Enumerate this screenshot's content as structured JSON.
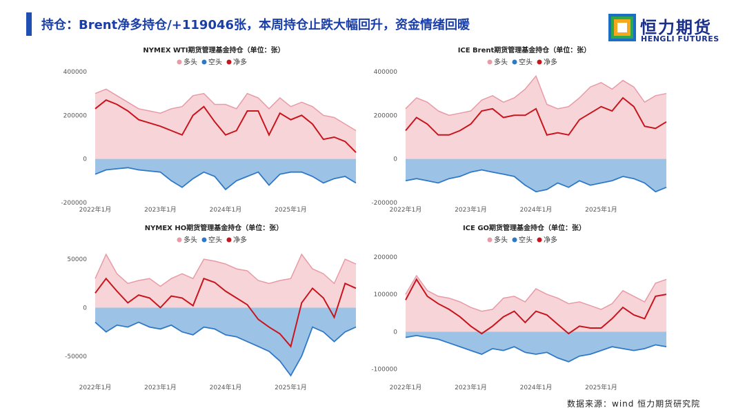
{
  "page": {
    "title": "持仓：Brent净多持仓/+119046张，本周持仓止跌大幅回升，资金情绪回暖",
    "source": "数据来源：wind 恒力期货研究院"
  },
  "logo": {
    "cn": "恒力期货",
    "en": "HENGLI FUTURES"
  },
  "colors": {
    "long": "#e89aa6",
    "long_fill": "#f6d4d8",
    "short": "#2f78c7",
    "short_fill": "#9cc3e6",
    "net": "#c8141c",
    "title_bar": "#1f4fb0"
  },
  "chart_data": [
    {
      "type": "area",
      "title": "NYMEX WTI期货管理基金持仓（单位：张）",
      "legend": [
        "多头",
        "空头",
        "净多"
      ],
      "legend_position": "top",
      "ylim": [
        -200000,
        400000
      ],
      "yticks": [
        -200000,
        0,
        200000,
        400000
      ],
      "ytick_labels": [
        "-200000",
        "0",
        "200000",
        "400000"
      ],
      "xlim": [
        0,
        48
      ],
      "xticks": [
        0,
        12,
        24,
        36
      ],
      "xtick_labels": [
        "2022年1月",
        "2023年1月",
        "2024年1月",
        "2025年1月"
      ],
      "x": [
        0,
        2,
        4,
        6,
        8,
        10,
        12,
        14,
        16,
        18,
        20,
        22,
        24,
        26,
        28,
        30,
        32,
        34,
        36,
        38,
        40,
        42,
        44,
        46,
        48
      ],
      "series": [
        {
          "name": "多头",
          "values": [
            300000,
            320000,
            290000,
            260000,
            230000,
            220000,
            210000,
            230000,
            240000,
            290000,
            300000,
            250000,
            250000,
            230000,
            300000,
            280000,
            230000,
            280000,
            240000,
            260000,
            240000,
            200000,
            190000,
            160000,
            130000
          ]
        },
        {
          "name": "空头",
          "values": [
            -70000,
            -50000,
            -45000,
            -40000,
            -50000,
            -55000,
            -60000,
            -100000,
            -130000,
            -90000,
            -60000,
            -80000,
            -140000,
            -100000,
            -80000,
            -60000,
            -120000,
            -70000,
            -60000,
            -60000,
            -80000,
            -110000,
            -90000,
            -80000,
            -110000
          ]
        },
        {
          "name": "净多",
          "values": [
            230000,
            270000,
            250000,
            220000,
            180000,
            165000,
            150000,
            130000,
            110000,
            200000,
            240000,
            170000,
            110000,
            130000,
            220000,
            220000,
            110000,
            210000,
            180000,
            200000,
            160000,
            90000,
            100000,
            80000,
            30000
          ]
        }
      ]
    },
    {
      "type": "area",
      "title": "ICE Brent期货管理基金持仓（单位：张）",
      "legend": [
        "多头",
        "空头",
        "净多"
      ],
      "legend_position": "top",
      "ylim": [
        -200000,
        400000
      ],
      "yticks": [
        -200000,
        0,
        200000,
        400000
      ],
      "ytick_labels": [
        "-200000",
        "0",
        "200000",
        "400000"
      ],
      "xlim": [
        0,
        48
      ],
      "xticks": [
        0,
        12,
        24,
        36
      ],
      "xtick_labels": [
        "2022年1月",
        "2023年1月",
        "2024年1月",
        "2025年1月"
      ],
      "x": [
        0,
        2,
        4,
        6,
        8,
        10,
        12,
        14,
        16,
        18,
        20,
        22,
        24,
        26,
        28,
        30,
        32,
        34,
        36,
        38,
        40,
        42,
        44,
        46,
        48
      ],
      "series": [
        {
          "name": "多头",
          "values": [
            230000,
            280000,
            260000,
            220000,
            200000,
            210000,
            220000,
            270000,
            290000,
            260000,
            280000,
            320000,
            380000,
            250000,
            230000,
            240000,
            280000,
            330000,
            350000,
            320000,
            360000,
            330000,
            260000,
            290000,
            300000
          ]
        },
        {
          "name": "空头",
          "values": [
            -100000,
            -90000,
            -100000,
            -110000,
            -90000,
            -80000,
            -60000,
            -50000,
            -60000,
            -70000,
            -80000,
            -120000,
            -150000,
            -140000,
            -110000,
            -130000,
            -100000,
            -120000,
            -110000,
            -100000,
            -80000,
            -90000,
            -110000,
            -150000,
            -130000
          ]
        },
        {
          "name": "净多",
          "values": [
            130000,
            190000,
            160000,
            110000,
            110000,
            130000,
            160000,
            220000,
            230000,
            190000,
            200000,
            200000,
            230000,
            110000,
            120000,
            110000,
            180000,
            210000,
            240000,
            220000,
            280000,
            240000,
            150000,
            140000,
            170000
          ]
        }
      ]
    },
    {
      "type": "area",
      "title": "NYMEX HO期货管理基金持仓（单位：张）",
      "legend": [
        "多头",
        "空头",
        "净多"
      ],
      "legend_position": "top",
      "ylim": [
        -75000,
        60000
      ],
      "yticks": [
        -50000,
        0,
        50000
      ],
      "ytick_labels": [
        "-50000",
        "0",
        "50000"
      ],
      "xlim": [
        0,
        48
      ],
      "xticks": [
        0,
        12,
        24,
        36
      ],
      "xtick_labels": [
        "2022年1月",
        "2023年1月",
        "2024年1月",
        "2025年1月"
      ],
      "x": [
        0,
        2,
        4,
        6,
        8,
        10,
        12,
        14,
        16,
        18,
        20,
        22,
        24,
        26,
        28,
        30,
        32,
        34,
        36,
        38,
        40,
        42,
        44,
        46,
        48
      ],
      "series": [
        {
          "name": "多头",
          "values": [
            30000,
            55000,
            35000,
            25000,
            28000,
            30000,
            22000,
            30000,
            35000,
            30000,
            50000,
            48000,
            45000,
            40000,
            38000,
            28000,
            25000,
            28000,
            30000,
            55000,
            40000,
            35000,
            25000,
            50000,
            45000
          ]
        },
        {
          "name": "空头",
          "values": [
            -15000,
            -25000,
            -18000,
            -20000,
            -15000,
            -20000,
            -22000,
            -18000,
            -25000,
            -28000,
            -20000,
            -22000,
            -28000,
            -30000,
            -35000,
            -40000,
            -45000,
            -55000,
            -70000,
            -50000,
            -20000,
            -25000,
            -35000,
            -25000,
            -20000
          ]
        },
        {
          "name": "净多",
          "values": [
            15000,
            30000,
            17000,
            5000,
            13000,
            10000,
            0,
            12000,
            10000,
            2000,
            30000,
            26000,
            17000,
            10000,
            3000,
            -12000,
            -20000,
            -27000,
            -40000,
            5000,
            20000,
            10000,
            -10000,
            25000,
            20000
          ]
        }
      ]
    },
    {
      "type": "area",
      "title": "ICE GO期货管理基金持仓（单位：张）",
      "legend": [
        "多头",
        "空头",
        "净多"
      ],
      "legend_position": "top",
      "ylim": [
        -130000,
        220000
      ],
      "yticks": [
        -100000,
        0,
        100000,
        200000
      ],
      "ytick_labels": [
        "-100000",
        "0",
        "100000",
        "200000"
      ],
      "xlim": [
        0,
        48
      ],
      "xticks": [
        0,
        12,
        24,
        36
      ],
      "xtick_labels": [
        "2022年1月",
        "2023年1月",
        "2024年1月",
        "2025年1月"
      ],
      "x": [
        0,
        2,
        4,
        6,
        8,
        10,
        12,
        14,
        16,
        18,
        20,
        22,
        24,
        26,
        28,
        30,
        32,
        34,
        36,
        38,
        40,
        42,
        44,
        46,
        48
      ],
      "series": [
        {
          "name": "多头",
          "values": [
            100000,
            150000,
            110000,
            95000,
            90000,
            80000,
            65000,
            55000,
            60000,
            90000,
            95000,
            80000,
            115000,
            100000,
            90000,
            75000,
            80000,
            70000,
            60000,
            75000,
            110000,
            95000,
            80000,
            130000,
            140000
          ]
        },
        {
          "name": "空头",
          "values": [
            -15000,
            -10000,
            -15000,
            -20000,
            -30000,
            -40000,
            -50000,
            -60000,
            -45000,
            -50000,
            -40000,
            -55000,
            -60000,
            -55000,
            -70000,
            -80000,
            -65000,
            -60000,
            -50000,
            -40000,
            -45000,
            -50000,
            -45000,
            -35000,
            -40000
          ]
        },
        {
          "name": "净多",
          "values": [
            85000,
            140000,
            95000,
            75000,
            60000,
            40000,
            15000,
            -5000,
            15000,
            40000,
            55000,
            25000,
            55000,
            45000,
            20000,
            -5000,
            15000,
            10000,
            10000,
            35000,
            65000,
            45000,
            35000,
            95000,
            100000
          ]
        }
      ]
    }
  ]
}
